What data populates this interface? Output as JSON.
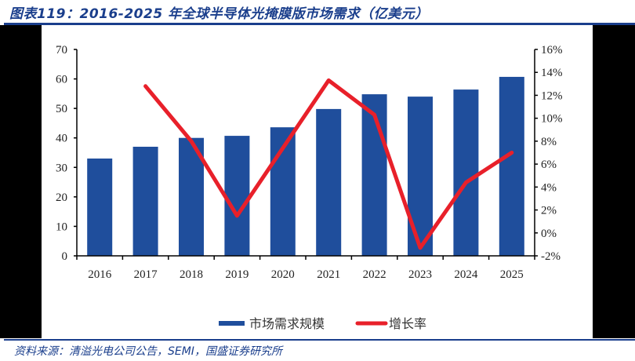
{
  "header": {
    "title": "图表119：2016-2025 年全球半导体光掩膜版市场需求（亿美元）"
  },
  "footer": {
    "source": "资料来源：清溢光电公司公告，SEMI，国盛证券研究所"
  },
  "colors": {
    "bar": "#1f4e9c",
    "line": "#e8202a",
    "title": "#1a3e8c"
  },
  "chart_data": {
    "type": "bar+line",
    "title": "2016-2025 年全球半导体光掩膜版市场需求（亿美元）",
    "categories": [
      "2016",
      "2017",
      "2018",
      "2019",
      "2020",
      "2021",
      "2022",
      "2023",
      "2024",
      "2025"
    ],
    "series": [
      {
        "name": "市场需求规模",
        "type": "bar",
        "axis": "left",
        "values": [
          33.0,
          37.0,
          40.0,
          40.7,
          43.6,
          49.8,
          54.8,
          54.0,
          56.4,
          60.7
        ]
      },
      {
        "name": "增长率",
        "type": "line",
        "axis": "right",
        "values": [
          null,
          12.8,
          8.0,
          1.5,
          7.4,
          13.3,
          10.3,
          -1.3,
          4.4,
          7.0
        ]
      }
    ],
    "left_axis": {
      "min": 0,
      "max": 70,
      "ticks": [
        "0",
        "10",
        "20",
        "30",
        "40",
        "50",
        "60",
        "70"
      ]
    },
    "right_axis": {
      "min": -2,
      "max": 16,
      "ticks": [
        "-2%",
        "0%",
        "2%",
        "4%",
        "6%",
        "8%",
        "10%",
        "12%",
        "14%",
        "16%"
      ]
    },
    "xlabel": "",
    "ylabel": "",
    "grid": false,
    "legend_position": "bottom",
    "legend": [
      "市场需求规模",
      "增长率"
    ]
  }
}
